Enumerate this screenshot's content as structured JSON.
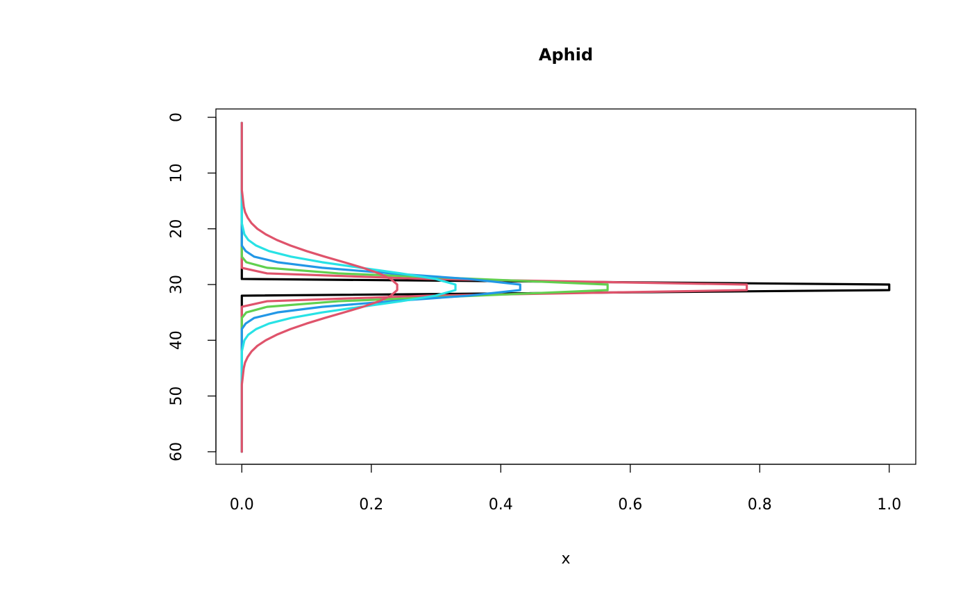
{
  "chart_data": {
    "type": "line",
    "title": "Aphid",
    "x_label": "x",
    "y": [
      1,
      2,
      3,
      4,
      5,
      6,
      7,
      8,
      9,
      10,
      11,
      12,
      13,
      14,
      15,
      16,
      17,
      18,
      19,
      20,
      21,
      22,
      23,
      24,
      25,
      26,
      27,
      28,
      29,
      30,
      31,
      32,
      33,
      34,
      35,
      36,
      37,
      38,
      39,
      40,
      41,
      42,
      43,
      44,
      45,
      46,
      47,
      48,
      49,
      50,
      51,
      52,
      53,
      54,
      55,
      56,
      57,
      58,
      59,
      60
    ],
    "series": [
      {
        "color": "#000000",
        "values": [
          0,
          0,
          0,
          0,
          0,
          0,
          0,
          0,
          0,
          0,
          0,
          0,
          0,
          0,
          0,
          0,
          0,
          0,
          0,
          0,
          0,
          0,
          0,
          0,
          0,
          0,
          0,
          0,
          0,
          1,
          1,
          0,
          0,
          0,
          0,
          0,
          0,
          0,
          0,
          0,
          0,
          0,
          0,
          0,
          0,
          0,
          0,
          0,
          0,
          0,
          0,
          0,
          0,
          0,
          0,
          0,
          0,
          0,
          0,
          0
        ]
      },
      {
        "color": "#DF536B",
        "values": [
          0,
          0,
          0,
          0,
          0,
          0,
          0,
          0,
          0,
          0,
          0,
          0,
          0,
          0,
          0,
          0,
          0,
          0,
          0,
          0,
          0,
          0,
          0,
          0,
          0,
          0,
          0,
          0.039,
          0.287,
          0.78,
          0.78,
          0.287,
          0.039,
          0,
          0,
          0,
          0,
          0,
          0,
          0,
          0,
          0,
          0,
          0,
          0,
          0,
          0,
          0,
          0,
          0,
          0,
          0,
          0,
          0,
          0,
          0,
          0,
          0,
          0,
          0
        ]
      },
      {
        "color": "#61D04F",
        "values": [
          0,
          0,
          0,
          0,
          0,
          0,
          0,
          0,
          0,
          0,
          0,
          0,
          0,
          0,
          0,
          0,
          0,
          0,
          0,
          0,
          0,
          0,
          0,
          0,
          0,
          0.007,
          0.039,
          0.149,
          0.362,
          0.565,
          0.565,
          0.362,
          0.149,
          0.039,
          0.007,
          0,
          0,
          0,
          0,
          0,
          0,
          0,
          0,
          0,
          0,
          0,
          0,
          0,
          0,
          0,
          0,
          0,
          0,
          0,
          0,
          0,
          0,
          0,
          0,
          0
        ]
      },
      {
        "color": "#2297E6",
        "values": [
          0,
          0,
          0,
          0,
          0,
          0,
          0,
          0,
          0,
          0,
          0,
          0,
          0,
          0,
          0,
          0,
          0,
          0,
          0,
          0,
          0,
          0,
          0,
          0.006,
          0.019,
          0.055,
          0.124,
          0.231,
          0.35,
          0.43,
          0.43,
          0.35,
          0.231,
          0.124,
          0.055,
          0.019,
          0.006,
          0,
          0,
          0,
          0,
          0,
          0,
          0,
          0,
          0,
          0,
          0,
          0,
          0,
          0,
          0,
          0,
          0,
          0,
          0,
          0,
          0,
          0,
          0
        ]
      },
      {
        "color": "#28E2E5",
        "values": [
          0,
          0,
          0,
          0,
          0,
          0,
          0,
          0,
          0,
          0,
          0,
          0,
          0,
          0,
          0,
          0,
          0,
          0,
          0,
          0.002,
          0.004,
          0.01,
          0.022,
          0.042,
          0.076,
          0.124,
          0.184,
          0.246,
          0.299,
          0.33,
          0.33,
          0.299,
          0.246,
          0.184,
          0.124,
          0.076,
          0.042,
          0.022,
          0.01,
          0.004,
          0.002,
          0,
          0,
          0,
          0,
          0,
          0,
          0,
          0,
          0,
          0,
          0,
          0,
          0,
          0,
          0,
          0,
          0,
          0,
          0
        ]
      },
      {
        "color": "#DF536B",
        "values": [
          0,
          0,
          0,
          0,
          0,
          0,
          0,
          0,
          0,
          0,
          0,
          0,
          0,
          0.001,
          0.002,
          0.003,
          0.005,
          0.009,
          0.015,
          0.024,
          0.037,
          0.054,
          0.075,
          0.1,
          0.128,
          0.158,
          0.187,
          0.212,
          0.23,
          0.24,
          0.24,
          0.23,
          0.212,
          0.187,
          0.158,
          0.128,
          0.1,
          0.075,
          0.054,
          0.037,
          0.024,
          0.015,
          0.009,
          0.005,
          0.003,
          0.002,
          0.001,
          0,
          0,
          0,
          0,
          0,
          0,
          0,
          0,
          0,
          0,
          0,
          0,
          0
        ]
      }
    ],
    "xlim": [
      -0.04,
      1.041
    ],
    "xticks": [
      {
        "value": 0,
        "label": "0.0"
      },
      {
        "value": 0.2,
        "label": "0.2"
      },
      {
        "value": 0.4,
        "label": "0.4"
      },
      {
        "value": 0.6,
        "label": "0.6"
      },
      {
        "value": 0.8,
        "label": "0.8"
      },
      {
        "value": 1,
        "label": "1.0"
      }
    ],
    "ylim": [
      62.25,
      -1.5
    ],
    "yticks": [
      0,
      10,
      20,
      30,
      40,
      50,
      60
    ]
  }
}
